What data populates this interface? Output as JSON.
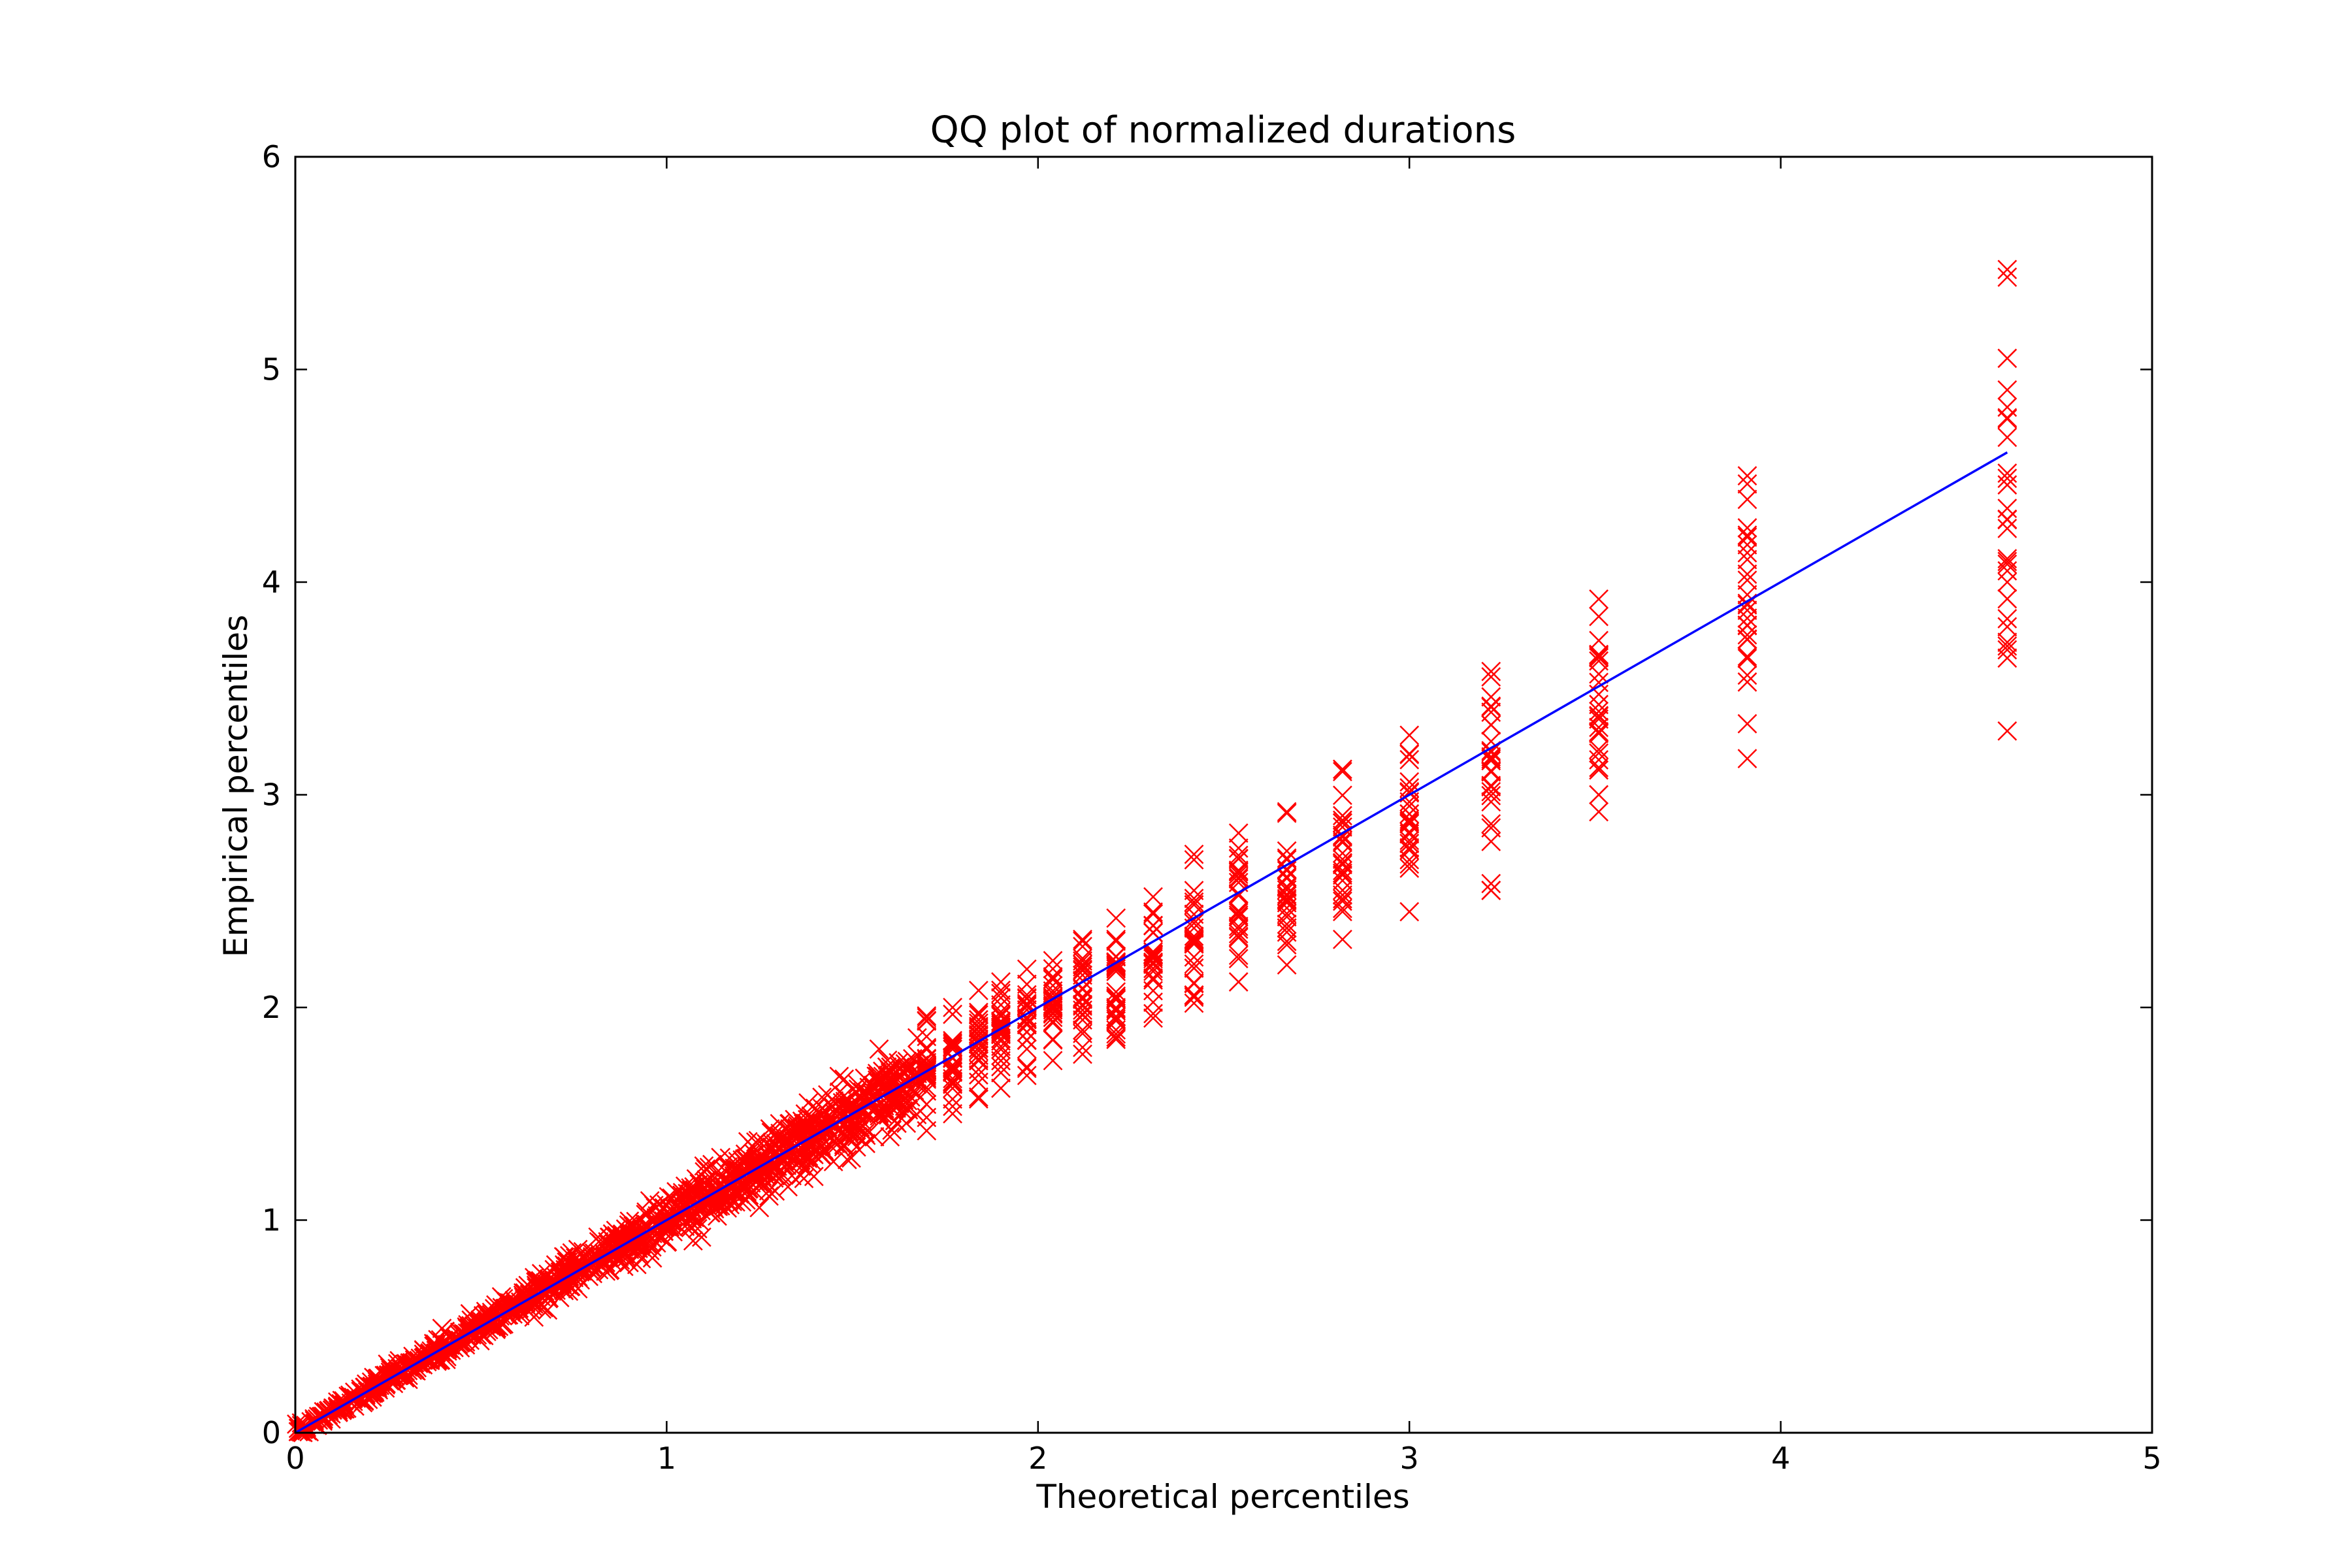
{
  "chart_data": {
    "type": "scatter",
    "title": "QQ plot of normalized durations",
    "xlabel": "Theoretical percentiles",
    "ylabel": "Empirical percentiles",
    "xlim": [
      0,
      5
    ],
    "ylim": [
      0,
      6
    ],
    "xticks": [
      "0",
      "1",
      "2",
      "3",
      "4",
      "5"
    ],
    "yticks": [
      "0",
      "1",
      "2",
      "3",
      "4",
      "5",
      "6"
    ],
    "grid": false,
    "legend": "none",
    "series": [
      {
        "type": "scatter",
        "marker": "x",
        "color": "#ff0000",
        "columns": [
          {
            "x": 1.7,
            "ymin": 1.42,
            "ymax": 1.96
          },
          {
            "x": 1.77,
            "ymin": 1.5,
            "ymax": 2.0
          },
          {
            "x": 1.84,
            "ymin": 1.57,
            "ymax": 2.08
          },
          {
            "x": 1.9,
            "ymin": 1.62,
            "ymax": 2.12
          },
          {
            "x": 1.97,
            "ymin": 1.68,
            "ymax": 2.18
          },
          {
            "x": 2.04,
            "ymin": 1.75,
            "ymax": 2.22
          },
          {
            "x": 2.12,
            "ymin": 1.78,
            "ymax": 2.32
          },
          {
            "x": 2.21,
            "ymin": 1.85,
            "ymax": 2.42
          },
          {
            "x": 2.31,
            "ymin": 1.95,
            "ymax": 2.52
          },
          {
            "x": 2.42,
            "ymin": 2.02,
            "ymax": 2.72
          },
          {
            "x": 2.54,
            "ymin": 2.12,
            "ymax": 2.82
          },
          {
            "x": 2.67,
            "ymin": 2.2,
            "ymax": 2.92
          },
          {
            "x": 2.82,
            "ymin": 2.32,
            "ymax": 3.12
          },
          {
            "x": 3.0,
            "ymin": 2.45,
            "ymax": 3.28
          },
          {
            "x": 3.22,
            "ymin": 2.55,
            "ymax": 3.58
          },
          {
            "x": 3.51,
            "ymin": 2.92,
            "ymax": 3.92
          },
          {
            "x": 3.91,
            "ymin": 3.17,
            "ymax": 4.5
          },
          {
            "x": 4.61,
            "ymin": 3.3,
            "ymax": 5.47
          }
        ]
      },
      {
        "type": "line",
        "color": "#0000ff",
        "x": [
          0,
          4.61
        ],
        "y": [
          0,
          4.61
        ]
      }
    ]
  }
}
